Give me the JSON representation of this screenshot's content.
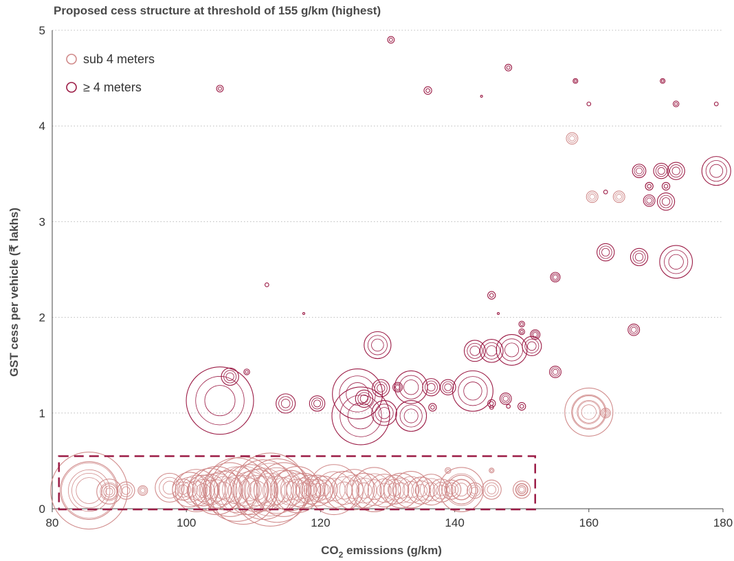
{
  "chart_data": {
    "type": "scatter",
    "title": "Proposed cess structure at threshold of 155 g/km (highest)",
    "xlabel_main": "CO",
    "xlabel_sub": "2",
    "xlabel_rest": " emissions (g/km)",
    "ylabel": "GST cess per vehicle (₹ lakhs)",
    "xlim": [
      80,
      180
    ],
    "ylim": [
      0,
      5
    ],
    "x_ticks": [
      "80",
      "100",
      "120",
      "140",
      "160",
      "180"
    ],
    "y_ticks": [
      "0",
      "1",
      "2",
      "3",
      "4",
      "5"
    ],
    "grid": "horizontal dotted",
    "legend_position": "top-left",
    "highlight_box": {
      "x": [
        81,
        152
      ],
      "y": [
        0,
        0.55
      ],
      "style": "dashed"
    },
    "colors": {
      "sub4": "#d08a8a",
      "ge4": "#9b1b45",
      "grid": "#bbbbbb",
      "axis": "#444444"
    },
    "series": [
      {
        "name": "sub 4 meters",
        "key": "sub4",
        "points": [
          {
            "x": 85.5,
            "y": 0.19,
            "r": 4
          },
          {
            "x": 85.5,
            "y": 0.19,
            "r": 3
          },
          {
            "x": 88.5,
            "y": 0.18,
            "r": 1.3
          },
          {
            "x": 88.5,
            "y": 0.18,
            "r": 0.8
          },
          {
            "x": 91,
            "y": 0.19,
            "r": 0.9
          },
          {
            "x": 93.5,
            "y": 0.19,
            "r": 0.5
          },
          {
            "x": 97.5,
            "y": 0.22,
            "r": 1.5
          },
          {
            "x": 99.5,
            "y": 0.2,
            "r": 1.1
          },
          {
            "x": 100.5,
            "y": 0.2,
            "r": 1.8
          },
          {
            "x": 101.5,
            "y": 0.19,
            "r": 2.2
          },
          {
            "x": 102.5,
            "y": 0.19,
            "r": 1.6
          },
          {
            "x": 103.5,
            "y": 0.2,
            "r": 2.2
          },
          {
            "x": 104.5,
            "y": 0.19,
            "r": 2.5
          },
          {
            "x": 105.5,
            "y": 0.19,
            "r": 2
          },
          {
            "x": 106.5,
            "y": 0.2,
            "r": 2.8
          },
          {
            "x": 107.5,
            "y": 0.2,
            "r": 3.3
          },
          {
            "x": 108.5,
            "y": 0.19,
            "r": 3.5
          },
          {
            "x": 109.5,
            "y": 0.2,
            "r": 2.6
          },
          {
            "x": 110.5,
            "y": 0.19,
            "r": 2.2
          },
          {
            "x": 111.5,
            "y": 0.2,
            "r": 3.1
          },
          {
            "x": 112.5,
            "y": 0.2,
            "r": 3.8
          },
          {
            "x": 113.5,
            "y": 0.19,
            "r": 3.3
          },
          {
            "x": 114.5,
            "y": 0.2,
            "r": 2.8
          },
          {
            "x": 115.5,
            "y": 0.19,
            "r": 2.1
          },
          {
            "x": 116.5,
            "y": 0.2,
            "r": 2.4
          },
          {
            "x": 117.5,
            "y": 0.19,
            "r": 1.8
          },
          {
            "x": 118.5,
            "y": 0.2,
            "r": 1.5
          },
          {
            "x": 119.5,
            "y": 0.19,
            "r": 1.6
          },
          {
            "x": 120.5,
            "y": 0.2,
            "r": 1.4
          },
          {
            "x": 122,
            "y": 0.2,
            "r": 2.6
          },
          {
            "x": 123.5,
            "y": 0.19,
            "r": 2
          },
          {
            "x": 125,
            "y": 0.2,
            "r": 2.1
          },
          {
            "x": 126.5,
            "y": 0.19,
            "r": 1.8
          },
          {
            "x": 128,
            "y": 0.2,
            "r": 2.3
          },
          {
            "x": 129.5,
            "y": 0.19,
            "r": 1.7
          },
          {
            "x": 131,
            "y": 0.2,
            "r": 1.5
          },
          {
            "x": 132,
            "y": 0.19,
            "r": 1.8
          },
          {
            "x": 133.5,
            "y": 0.2,
            "r": 1.9
          },
          {
            "x": 135,
            "y": 0.19,
            "r": 1.4
          },
          {
            "x": 136.5,
            "y": 0.2,
            "r": 1.6
          },
          {
            "x": 138,
            "y": 0.19,
            "r": 1.2
          },
          {
            "x": 139.5,
            "y": 0.2,
            "r": 1
          },
          {
            "x": 141,
            "y": 0.2,
            "r": 2.3
          },
          {
            "x": 141,
            "y": 0.2,
            "r": 1.5
          },
          {
            "x": 143,
            "y": 0.19,
            "r": 0.8
          },
          {
            "x": 145.5,
            "y": 0.2,
            "r": 1
          },
          {
            "x": 150,
            "y": 0.2,
            "r": 0.9
          },
          {
            "x": 150,
            "y": 0.2,
            "r": 0.6
          },
          {
            "x": 139,
            "y": 0.4,
            "r": 0.3
          },
          {
            "x": 145.5,
            "y": 0.4,
            "r": 0.25
          },
          {
            "x": 160,
            "y": 1.01,
            "r": 2.5
          },
          {
            "x": 160,
            "y": 1.01,
            "r": 1.7
          },
          {
            "x": 162.5,
            "y": 1.0,
            "r": 0.5
          },
          {
            "x": 157.5,
            "y": 3.87,
            "r": 0.6
          },
          {
            "x": 160.5,
            "y": 3.26,
            "r": 0.6
          },
          {
            "x": 164.5,
            "y": 3.26,
            "r": 0.6
          },
          {
            "x": 169,
            "y": 3.37,
            "r": 0.4
          }
        ]
      },
      {
        "name": "≥ 4 meters",
        "key": "ge4",
        "points": [
          {
            "x": 105,
            "y": 1.13,
            "r": 3.5
          },
          {
            "x": 106.5,
            "y": 1.38,
            "r": 0.9
          },
          {
            "x": 109,
            "y": 1.43,
            "r": 0.3
          },
          {
            "x": 114.8,
            "y": 1.1,
            "r": 1
          },
          {
            "x": 119.5,
            "y": 1.1,
            "r": 0.8
          },
          {
            "x": 128.5,
            "y": 1.71,
            "r": 1.4
          },
          {
            "x": 126.5,
            "y": 1.15,
            "r": 0.9
          },
          {
            "x": 125.5,
            "y": 1.2,
            "r": 2.6
          },
          {
            "x": 126,
            "y": 0.97,
            "r": 3
          },
          {
            "x": 129.5,
            "y": 1.0,
            "r": 1.3
          },
          {
            "x": 129,
            "y": 1.26,
            "r": 0.9
          },
          {
            "x": 131.5,
            "y": 1.27,
            "r": 0.5
          },
          {
            "x": 133.5,
            "y": 1.27,
            "r": 1.7
          },
          {
            "x": 133.5,
            "y": 0.97,
            "r": 1.6
          },
          {
            "x": 136.5,
            "y": 1.27,
            "r": 0.9
          },
          {
            "x": 139,
            "y": 1.27,
            "r": 0.8
          },
          {
            "x": 142.7,
            "y": 1.23,
            "r": 2.1
          },
          {
            "x": 136.7,
            "y": 1.06,
            "r": 0.4
          },
          {
            "x": 143,
            "y": 1.65,
            "r": 1.1
          },
          {
            "x": 145.5,
            "y": 1.65,
            "r": 1.2
          },
          {
            "x": 148.5,
            "y": 1.66,
            "r": 1.6
          },
          {
            "x": 151.5,
            "y": 1.7,
            "r": 1
          },
          {
            "x": 145.5,
            "y": 1.1,
            "r": 0.4
          },
          {
            "x": 147.6,
            "y": 1.15,
            "r": 0.6
          },
          {
            "x": 150,
            "y": 1.07,
            "r": 0.4
          },
          {
            "x": 148,
            "y": 1.07,
            "r": 0.2
          },
          {
            "x": 145.5,
            "y": 1.06,
            "r": 0.2
          },
          {
            "x": 150,
            "y": 1.85,
            "r": 0.3
          },
          {
            "x": 150,
            "y": 1.93,
            "r": 0.3
          },
          {
            "x": 152,
            "y": 1.82,
            "r": 0.5
          },
          {
            "x": 155,
            "y": 1.43,
            "r": 0.6
          },
          {
            "x": 155,
            "y": 2.42,
            "r": 0.5
          },
          {
            "x": 145.5,
            "y": 2.23,
            "r": 0.4
          },
          {
            "x": 146.5,
            "y": 2.04,
            "r": 0.1
          },
          {
            "x": 112,
            "y": 2.34,
            "r": 0.2
          },
          {
            "x": 117.5,
            "y": 2.04,
            "r": 0.1
          },
          {
            "x": 105,
            "y": 4.39,
            "r": 0.35
          },
          {
            "x": 130.5,
            "y": 4.9,
            "r": 0.35
          },
          {
            "x": 136,
            "y": 4.37,
            "r": 0.4
          },
          {
            "x": 144,
            "y": 4.31,
            "r": 0.1
          },
          {
            "x": 148,
            "y": 4.61,
            "r": 0.35
          },
          {
            "x": 158,
            "y": 4.47,
            "r": 0.25
          },
          {
            "x": 160,
            "y": 4.23,
            "r": 0.2
          },
          {
            "x": 171,
            "y": 4.47,
            "r": 0.25
          },
          {
            "x": 173,
            "y": 4.23,
            "r": 0.3
          },
          {
            "x": 179,
            "y": 4.23,
            "r": 0.2
          },
          {
            "x": 162.5,
            "y": 2.68,
            "r": 0.9
          },
          {
            "x": 162.5,
            "y": 3.31,
            "r": 0.2
          },
          {
            "x": 166.7,
            "y": 1.87,
            "r": 0.6
          },
          {
            "x": 167.5,
            "y": 2.63,
            "r": 0.9
          },
          {
            "x": 167.5,
            "y": 3.53,
            "r": 0.7
          },
          {
            "x": 169,
            "y": 3.22,
            "r": 0.6
          },
          {
            "x": 169,
            "y": 3.37,
            "r": 0.4
          },
          {
            "x": 170.8,
            "y": 3.53,
            "r": 0.8
          },
          {
            "x": 171.5,
            "y": 3.21,
            "r": 0.9
          },
          {
            "x": 171.5,
            "y": 3.37,
            "r": 0.4
          },
          {
            "x": 173,
            "y": 3.53,
            "r": 0.9
          },
          {
            "x": 173,
            "y": 2.58,
            "r": 1.7
          },
          {
            "x": 179,
            "y": 3.53,
            "r": 1.5
          }
        ]
      }
    ]
  }
}
